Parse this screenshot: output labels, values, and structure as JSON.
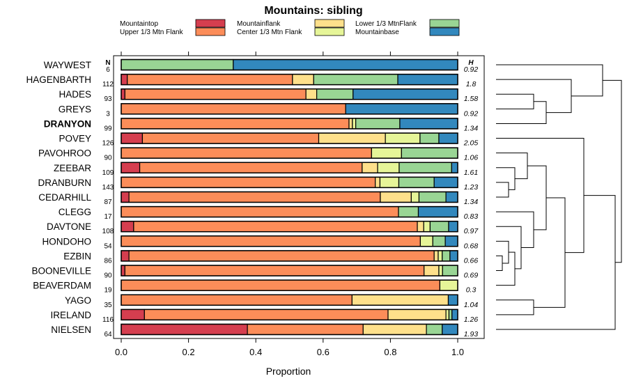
{
  "chart_data": {
    "type": "bar",
    "orientation": "horizontal",
    "stacked": true,
    "title": "Mountains: sibling",
    "xlabel": "Proportion",
    "xlim": [
      0,
      1
    ],
    "xticks": [
      "0.0",
      "0.2",
      "0.4",
      "0.6",
      "0.8",
      "1.0"
    ],
    "n_header": "N",
    "h_header": "H",
    "legend": [
      {
        "name": "Mountaintop",
        "color": "#d53e4f"
      },
      {
        "name": "Upper 1/3 Mtn Flank",
        "color": "#fc8d59"
      },
      {
        "name": "Mountainflank",
        "color": "#fee08b"
      },
      {
        "name": "Center 1/3 Mtn Flank",
        "color": "#e6f598"
      },
      {
        "name": "Lower 1/3 MtnFlank",
        "color": "#99d594"
      },
      {
        "name": "Mountainbase",
        "color": "#3288bd"
      }
    ],
    "rows": [
      {
        "name": "WAYWEST",
        "bold": false,
        "n": "6",
        "h": "0.92",
        "values": [
          0,
          0,
          0,
          0,
          0.333,
          0.667
        ]
      },
      {
        "name": "HAGENBARTH",
        "bold": false,
        "n": "112",
        "h": "1.8",
        "values": [
          0.018,
          0.491,
          0.063,
          0,
          0.25,
          0.178
        ]
      },
      {
        "name": "HADES",
        "bold": false,
        "n": "93",
        "h": "1.58",
        "values": [
          0.011,
          0.538,
          0.032,
          0,
          0.108,
          0.311
        ]
      },
      {
        "name": "GREYS",
        "bold": false,
        "n": "3",
        "h": "0.92",
        "values": [
          0,
          0.667,
          0,
          0,
          0,
          0.333
        ]
      },
      {
        "name": "DRANYON",
        "bold": true,
        "n": "99",
        "h": "1.34",
        "values": [
          0,
          0.677,
          0.01,
          0.01,
          0.131,
          0.172
        ]
      },
      {
        "name": "POVEY",
        "bold": false,
        "n": "126",
        "h": "2.05",
        "values": [
          0.063,
          0.524,
          0.198,
          0.103,
          0.056,
          0.056
        ]
      },
      {
        "name": "PAVOHROO",
        "bold": false,
        "n": "90",
        "h": "1.06",
        "values": [
          0,
          0.744,
          0,
          0.089,
          0.167,
          0
        ]
      },
      {
        "name": "ZEEBAR",
        "bold": false,
        "n": "109",
        "h": "1.61",
        "values": [
          0.055,
          0.661,
          0.046,
          0.064,
          0.156,
          0.018
        ]
      },
      {
        "name": "DRANBURN",
        "bold": false,
        "n": "143",
        "h": "1.23",
        "values": [
          0,
          0.755,
          0.014,
          0.056,
          0.105,
          0.07
        ]
      },
      {
        "name": "CEDARHILL",
        "bold": false,
        "n": "87",
        "h": "1.34",
        "values": [
          0.023,
          0.747,
          0.092,
          0.023,
          0.08,
          0.035
        ]
      },
      {
        "name": "CLEGG",
        "bold": false,
        "n": "17",
        "h": "0.83",
        "values": [
          0,
          0.824,
          0,
          0,
          0.059,
          0.117
        ]
      },
      {
        "name": "DAVTONE",
        "bold": false,
        "n": "108",
        "h": "0.97",
        "values": [
          0.037,
          0.843,
          0.019,
          0.019,
          0.055,
          0.027
        ]
      },
      {
        "name": "HONDOHO",
        "bold": false,
        "n": "54",
        "h": "0.68",
        "values": [
          0,
          0.889,
          0,
          0.037,
          0.037,
          0.037
        ]
      },
      {
        "name": "EZBIN",
        "bold": false,
        "n": "86",
        "h": "0.66",
        "values": [
          0.023,
          0.907,
          0.012,
          0.012,
          0.023,
          0.023
        ]
      },
      {
        "name": "BOONEVILLE",
        "bold": false,
        "n": "90",
        "h": "0.69",
        "values": [
          0.011,
          0.889,
          0.044,
          0.011,
          0.045,
          0
        ]
      },
      {
        "name": "BEAVERDAM",
        "bold": false,
        "n": "19",
        "h": "0.3",
        "values": [
          0,
          0.947,
          0,
          0.053,
          0,
          0
        ]
      },
      {
        "name": "YAGO",
        "bold": false,
        "n": "35",
        "h": "1.04",
        "values": [
          0,
          0.686,
          0.286,
          0,
          0,
          0.028
        ]
      },
      {
        "name": "IRELAND",
        "bold": false,
        "n": "116",
        "h": "1.26",
        "values": [
          0.069,
          0.724,
          0.172,
          0.009,
          0.009,
          0.017
        ]
      },
      {
        "name": "NIELSEN",
        "bold": false,
        "n": "64",
        "h": "1.93",
        "values": [
          0.375,
          0.344,
          0.188,
          0,
          0.047,
          0.046
        ]
      }
    ],
    "dendrogram": [
      {
        "a": 2,
        "b": 3,
        "h": 0.3
      },
      {
        "a": 19,
        "b": 4,
        "h": 0.4
      },
      {
        "a": 1,
        "b": 20,
        "h": 0.6
      },
      {
        "a": 0,
        "b": 21,
        "h": 0.85
      },
      {
        "a": 13,
        "b": 14,
        "h": 0.05
      },
      {
        "a": 12,
        "b": 23,
        "h": 0.1
      },
      {
        "a": 24,
        "b": 15,
        "h": 0.15
      },
      {
        "a": 11,
        "b": 25,
        "h": 0.2
      },
      {
        "a": 10,
        "b": 26,
        "h": 0.3
      },
      {
        "a": 8,
        "b": 9,
        "h": 0.1
      },
      {
        "a": 7,
        "b": 28,
        "h": 0.15
      },
      {
        "a": 6,
        "b": 29,
        "h": 0.25
      },
      {
        "a": 30,
        "b": 27,
        "h": 0.4
      },
      {
        "a": 16,
        "b": 17,
        "h": 0.3
      },
      {
        "a": 31,
        "b": 32,
        "h": 0.55
      },
      {
        "a": 5,
        "b": 33,
        "h": 0.7
      },
      {
        "a": 34,
        "b": 18,
        "h": 0.95
      },
      {
        "a": 22,
        "b": 35,
        "h": 1.0
      }
    ]
  }
}
